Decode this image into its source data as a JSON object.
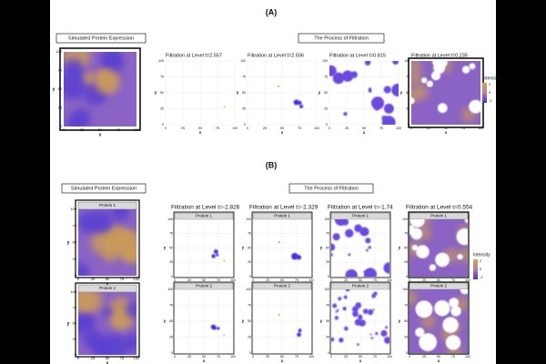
{
  "panel_a": {
    "label": "(A)",
    "simulated_title": "Simulated Protein Expression",
    "process_title": "The Process of Filtration",
    "filtrations": [
      "Filtration at Level t=2.557",
      "Filtration at Level t=2.506",
      "Filtration at Level t=0.815",
      "Filtration at Level t=0.235"
    ],
    "legend_title": "Intensity",
    "legend_ticks": [
      2,
      0,
      -2
    ],
    "axis_ticks": [
      0,
      25,
      50,
      75,
      100
    ],
    "x_label": "x",
    "y_label": "y"
  },
  "panel_b": {
    "label": "(B)",
    "simulated_title": "Simulated Protein Expression",
    "process_title": "The Process of Filtration",
    "protein_labels": [
      "Protein 1",
      "Protein 2"
    ],
    "filtrations": [
      "Filtration at Level t=-2.826",
      "Filtration at Level t=-2.329",
      "Filtration at Level t=-1.74",
      "Filtration at Level t=0.554"
    ],
    "legend_title": "Intensity",
    "legend_ticks": [
      2,
      0,
      -2
    ],
    "axis_ticks": [
      0,
      25,
      50,
      75,
      100
    ],
    "x_label": "x",
    "y_label": "y"
  }
}
